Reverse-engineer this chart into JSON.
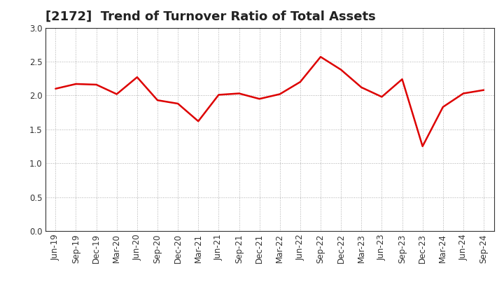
{
  "title": "[2172]  Trend of Turnover Ratio of Total Assets",
  "x_labels": [
    "Jun-19",
    "Sep-19",
    "Dec-19",
    "Mar-20",
    "Jun-20",
    "Sep-20",
    "Dec-20",
    "Mar-21",
    "Jun-21",
    "Sep-21",
    "Dec-21",
    "Mar-22",
    "Jun-22",
    "Sep-22",
    "Dec-22",
    "Mar-23",
    "Jun-23",
    "Sep-23",
    "Dec-23",
    "Mar-24",
    "Jun-24",
    "Sep-24"
  ],
  "y_values": [
    2.1,
    2.17,
    2.16,
    2.02,
    2.27,
    1.93,
    1.88,
    1.62,
    2.01,
    2.03,
    1.95,
    2.02,
    2.2,
    2.57,
    2.38,
    2.12,
    1.98,
    2.24,
    1.25,
    1.83,
    2.03,
    2.08
  ],
  "line_color": "#dd0000",
  "line_width": 1.8,
  "ylim": [
    0.0,
    3.0
  ],
  "yticks": [
    0.0,
    0.5,
    1.0,
    1.5,
    2.0,
    2.5,
    3.0
  ],
  "background_color": "#ffffff",
  "plot_bg_color": "#ffffff",
  "grid_color": "#999999",
  "title_fontsize": 13,
  "tick_fontsize": 8.5,
  "title_color": "#222222"
}
